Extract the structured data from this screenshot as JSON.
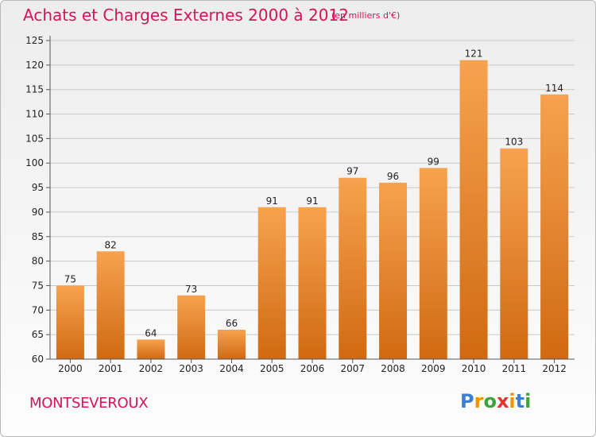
{
  "header": {
    "title": "Achats et Charges Externes 2000 à 2012",
    "subtitle": "(en milliers d'€)"
  },
  "footer": {
    "commune": "MONTSEVEROUX",
    "logo": "Proxiti",
    "logo_letters": [
      {
        "ch": "P",
        "color": "#3a7fd0"
      },
      {
        "ch": "r",
        "color": "#f39200"
      },
      {
        "ch": "o",
        "color": "#3aa63a"
      },
      {
        "ch": "x",
        "color": "#e3342f"
      },
      {
        "ch": "i",
        "color": "#f39200"
      },
      {
        "ch": "t",
        "color": "#3a7fd0"
      },
      {
        "ch": "i",
        "color": "#3aa63a"
      }
    ]
  },
  "colors": {
    "title": "#d4145a",
    "bar_top": "#f7a24f",
    "bar_bottom": "#d06a12",
    "grid": "#c8c8c8"
  },
  "chart_data": {
    "type": "bar",
    "categories": [
      "2000",
      "2001",
      "2002",
      "2003",
      "2004",
      "2005",
      "2006",
      "2007",
      "2008",
      "2009",
      "2010",
      "2011",
      "2012"
    ],
    "values": [
      75,
      82,
      64,
      73,
      66,
      91,
      91,
      97,
      96,
      99,
      121,
      103,
      114
    ],
    "data_labels": [
      "75",
      "82",
      "64",
      "73",
      "66",
      "91",
      "91",
      "97",
      "96",
      "99",
      "121",
      "103",
      "114"
    ],
    "title": "Achats et Charges Externes 2000 à 2012",
    "xlabel": "",
    "ylabel": "",
    "ylim": [
      60,
      125
    ],
    "yticks": [
      60,
      65,
      70,
      75,
      80,
      85,
      90,
      95,
      100,
      105,
      110,
      115,
      120,
      125
    ],
    "grid": true
  }
}
